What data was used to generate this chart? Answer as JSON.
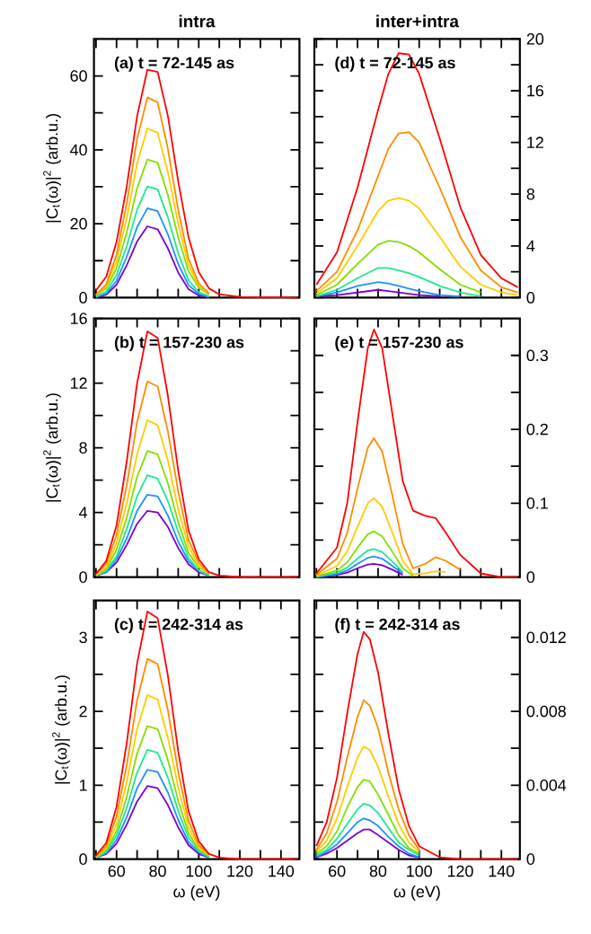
{
  "chart_data": [
    {
      "type": "line",
      "title": "intra",
      "ylabel": "|C$_{t}$(ω)|$^{2}$ (arb.u.)",
      "annotations": [
        "(a) t = 72-145 as"
      ],
      "tick_labels": "y",
      "x": [
        50,
        55,
        60,
        65,
        70,
        75,
        80,
        85,
        90,
        95,
        100,
        105,
        110,
        120,
        148
      ],
      "series": [
        {
          "color": "#7a00d0",
          "values": [
            0,
            0.8,
            3.5,
            8.8,
            15.2,
            19.3,
            18.5,
            13.3,
            6.8,
            2.3,
            0.6,
            0.1,
            null,
            null,
            null
          ]
        },
        {
          "color": "#2090ff",
          "values": [
            0.2,
            1.1,
            4.6,
            11.1,
            19.1,
            24.2,
            23.4,
            17.1,
            9.1,
            3.4,
            1.0,
            0.2,
            null,
            null,
            null
          ]
        },
        {
          "color": "#20e890",
          "values": [
            0.3,
            1.6,
            6.1,
            14.0,
            23.8,
            30.1,
            29.3,
            21.7,
            12.0,
            4.7,
            1.5,
            0.4,
            null,
            null,
            null
          ]
        },
        {
          "color": "#80e000",
          "values": [
            0.6,
            2.5,
            8.0,
            17.7,
            29.6,
            37.4,
            36.5,
            27.7,
            16.3,
            7.2,
            2.7,
            0.8,
            null,
            null,
            null
          ]
        },
        {
          "color": "#ffcc00",
          "values": [
            0.7,
            3.0,
            9.8,
            21.6,
            36.3,
            45.8,
            44.6,
            33.9,
            20.0,
            8.8,
            3.3,
            0.9,
            null,
            null,
            null
          ]
        },
        {
          "color": "#ff8c00",
          "values": [
            0.8,
            3.6,
            11.6,
            25.6,
            42.9,
            54.2,
            52.8,
            40.2,
            23.7,
            10.5,
            3.9,
            1.1,
            null,
            null,
            null
          ]
        },
        {
          "color": "#ff0000",
          "values": [
            1.9,
            5.7,
            15.1,
            30.2,
            49.1,
            61.7,
            61.1,
            49.1,
            31.5,
            16.4,
            6.9,
            2.5,
            0.9,
            0.2,
            0
          ]
        }
      ],
      "xlim": [
        49,
        149
      ],
      "xticks": [
        {
          "value": 50,
          "label": null
        },
        60,
        {
          "value": 70,
          "label": null
        },
        80,
        {
          "value": 90,
          "label": null
        },
        100,
        {
          "value": 110,
          "label": null
        },
        120,
        {
          "value": 130,
          "label": null
        },
        140
      ],
      "ylim": [
        0,
        70
      ],
      "yticks": [
        0,
        {
          "value": 10,
          "label": null
        },
        20,
        {
          "value": 30,
          "label": null
        },
        40,
        {
          "value": 50,
          "label": null
        },
        60
      ]
    },
    {
      "type": "line",
      "title": "inter+intra",
      "annotations": [
        "(d) t = 72-145 as"
      ],
      "tick_labels": "y",
      "x": [
        50,
        60,
        70,
        80,
        85,
        90,
        95,
        100,
        110,
        120,
        130,
        140,
        148
      ],
      "series": [
        {
          "color": "#7a00d0",
          "values": [
            0.1,
            0.2,
            0.4,
            0.6,
            0.5,
            0.4,
            0.3,
            0.2,
            0.1,
            null,
            null,
            null,
            null
          ]
        },
        {
          "color": "#2090ff",
          "values": [
            0.1,
            0.4,
            0.9,
            1.2,
            1.1,
            0.9,
            0.7,
            0.5,
            0.2,
            0.1,
            null,
            null,
            null
          ]
        },
        {
          "color": "#20e890",
          "values": [
            0.1,
            0.6,
            1.5,
            2.3,
            2.3,
            2.1,
            1.9,
            1.6,
            0.9,
            0.4,
            0.1,
            null,
            null
          ]
        },
        {
          "color": "#80e000",
          "values": [
            0.2,
            1.0,
            2.6,
            4.1,
            4.4,
            4.3,
            4.0,
            3.5,
            2.2,
            1.0,
            0.4,
            null,
            null
          ]
        },
        {
          "color": "#ffcc00",
          "values": [
            0.3,
            1.5,
            4.0,
            6.7,
            7.5,
            7.7,
            7.5,
            6.9,
            4.7,
            2.4,
            1.0,
            0.4,
            0.2
          ]
        },
        {
          "color": "#ff8c00",
          "values": [
            0.5,
            2.0,
            5.2,
            9.4,
            11.5,
            12.7,
            12.8,
            12.0,
            8.5,
            4.7,
            2.1,
            0.8,
            0.4
          ]
        },
        {
          "color": "#ff0000",
          "values": [
            1.0,
            3.5,
            8.5,
            14.5,
            17.3,
            18.9,
            18.8,
            17.3,
            12.3,
            7.0,
            3.3,
            1.5,
            0.8
          ]
        }
      ],
      "xlim": [
        49,
        149
      ],
      "xticks": [
        {
          "value": 50,
          "label": null
        },
        60,
        {
          "value": 70,
          "label": null
        },
        80,
        {
          "value": 90,
          "label": null
        },
        100,
        {
          "value": 110,
          "label": null
        },
        120,
        {
          "value": 130,
          "label": null
        },
        140
      ],
      "ylim": [
        0,
        20
      ],
      "yticks": [
        0,
        {
          "value": 2,
          "label": null
        },
        4,
        {
          "value": 6,
          "label": null
        },
        8,
        {
          "value": 10,
          "label": null
        },
        12,
        {
          "value": 14,
          "label": null
        },
        16,
        {
          "value": 18,
          "label": null
        },
        20
      ]
    },
    {
      "type": "line",
      "ylabel": "|C$_{t}$(ω)|$^{2}$ (arb.u.)",
      "annotations": [
        "(b) t = 157-230 as"
      ],
      "tick_labels": "y",
      "x": [
        50,
        55,
        60,
        65,
        70,
        75,
        80,
        85,
        90,
        95,
        100,
        105,
        110,
        120,
        148
      ],
      "series": [
        {
          "color": "#7a00d0",
          "values": [
            0.1,
            0.3,
            0.9,
            2.0,
            3.3,
            4.1,
            4.0,
            3.1,
            1.8,
            0.8,
            0.3,
            0.1,
            null,
            null,
            null
          ]
        },
        {
          "color": "#2090ff",
          "values": [
            0.1,
            0.3,
            1.1,
            2.4,
            4.1,
            5.1,
            5.0,
            3.8,
            2.2,
            1.0,
            0.4,
            0.1,
            null,
            null,
            null
          ]
        },
        {
          "color": "#20e890",
          "values": [
            0.1,
            0.4,
            1.3,
            3.0,
            5.0,
            6.3,
            6.1,
            4.7,
            2.8,
            1.2,
            0.4,
            0.1,
            null,
            null,
            null
          ]
        },
        {
          "color": "#80e000",
          "values": [
            0.1,
            0.5,
            1.7,
            3.7,
            6.2,
            7.8,
            7.6,
            5.8,
            3.4,
            1.5,
            0.6,
            0.2,
            null,
            null,
            null
          ]
        },
        {
          "color": "#ffcc00",
          "values": [
            0.1,
            0.6,
            2.1,
            4.6,
            7.6,
            9.7,
            9.4,
            7.2,
            4.2,
            1.9,
            0.7,
            0.2,
            null,
            null,
            null
          ]
        },
        {
          "color": "#ff8c00",
          "values": [
            0.2,
            0.8,
            2.6,
            5.7,
            9.6,
            12.1,
            11.8,
            9.0,
            5.3,
            2.3,
            0.9,
            0.2,
            null,
            null,
            null
          ]
        },
        {
          "color": "#ff0000",
          "values": [
            0.2,
            1.0,
            3.2,
            7.2,
            12.0,
            15.2,
            14.8,
            11.2,
            6.6,
            2.9,
            1.1,
            0.3,
            0.1,
            0,
            0
          ]
        }
      ],
      "xlim": [
        49,
        149
      ],
      "xticks": [
        {
          "value": 50,
          "label": null
        },
        60,
        {
          "value": 70,
          "label": null
        },
        80,
        {
          "value": 90,
          "label": null
        },
        100,
        {
          "value": 110,
          "label": null
        },
        120,
        {
          "value": 130,
          "label": null
        },
        140
      ],
      "ylim": [
        0,
        16
      ],
      "yticks": [
        0,
        {
          "value": 2,
          "label": null
        },
        4,
        {
          "value": 6,
          "label": null
        },
        8,
        {
          "value": 10,
          "label": null
        },
        12,
        {
          "value": 14,
          "label": null
        },
        16
      ]
    },
    {
      "type": "line",
      "annotations": [
        "(e) t = 157-230 as"
      ],
      "tick_labels": "y",
      "x": [
        50,
        60,
        65,
        70,
        75,
        78,
        82,
        87,
        92,
        97,
        103,
        108,
        113,
        120,
        130,
        140,
        148
      ],
      "series": [
        {
          "color": "#7a00d0",
          "values": [
            0,
            0.003,
            0.006,
            0.012,
            0.017,
            0.018,
            0.016,
            0.01,
            0.003,
            null,
            null,
            null,
            null,
            null,
            null,
            null,
            null
          ]
        },
        {
          "color": "#2090ff",
          "values": [
            0,
            0.004,
            0.009,
            0.018,
            0.026,
            0.028,
            0.025,
            0.015,
            0.005,
            null,
            null,
            null,
            null,
            null,
            null,
            null,
            null
          ]
        },
        {
          "color": "#20e890",
          "values": [
            0.001,
            0.006,
            0.013,
            0.025,
            0.036,
            0.038,
            0.034,
            0.021,
            0.007,
            null,
            null,
            null,
            null,
            null,
            null,
            null,
            null
          ]
        },
        {
          "color": "#80e000",
          "values": [
            0.001,
            0.009,
            0.02,
            0.04,
            0.058,
            0.062,
            0.055,
            0.034,
            0.012,
            0.002,
            null,
            null,
            null,
            null,
            null,
            null,
            null
          ]
        },
        {
          "color": "#ffcc00",
          "values": [
            0.002,
            0.015,
            0.035,
            0.068,
            0.1,
            0.107,
            0.095,
            0.06,
            0.022,
            0.004,
            0.005,
            0.008,
            0.007,
            null,
            null,
            null,
            null
          ]
        },
        {
          "color": "#ff8c00",
          "values": [
            0.003,
            0.025,
            0.06,
            0.12,
            0.175,
            0.188,
            0.17,
            0.11,
            0.045,
            0.012,
            0.018,
            0.027,
            0.022,
            0.01,
            null,
            null,
            null
          ]
        },
        {
          "color": "#ff0000",
          "values": [
            0.005,
            0.04,
            0.1,
            0.21,
            0.31,
            0.335,
            0.31,
            0.22,
            0.13,
            0.09,
            0.083,
            0.08,
            0.06,
            0.03,
            0.005,
            0,
            0
          ]
        }
      ],
      "xlim": [
        49,
        149
      ],
      "xticks": [
        {
          "value": 50,
          "label": null
        },
        60,
        {
          "value": 70,
          "label": null
        },
        80,
        {
          "value": 90,
          "label": null
        },
        100,
        {
          "value": 110,
          "label": null
        },
        120,
        {
          "value": 130,
          "label": null
        },
        140
      ],
      "ylim": [
        0,
        0.35
      ],
      "yticks": [
        0,
        {
          "value": 0.05,
          "label": null
        },
        0.1,
        {
          "value": 0.15,
          "label": null
        },
        0.2,
        {
          "value": 0.25,
          "label": null
        },
        0.3
      ]
    },
    {
      "type": "line",
      "xlabel": "ω (eV)",
      "ylabel": "|C$_{t}$(ω)|$^{2}$ (arb.u.)",
      "annotations": [
        "(c) t = 242-314 as"
      ],
      "x": [
        50,
        55,
        60,
        65,
        70,
        75,
        80,
        85,
        90,
        95,
        100,
        105,
        110,
        120,
        148
      ],
      "series": [
        {
          "color": "#7a00d0",
          "values": [
            0.02,
            0.07,
            0.21,
            0.47,
            0.78,
            0.99,
            0.96,
            0.73,
            0.43,
            0.19,
            0.07,
            0.02,
            null,
            null,
            null
          ]
        },
        {
          "color": "#2090ff",
          "values": [
            0.02,
            0.08,
            0.26,
            0.57,
            0.96,
            1.21,
            1.18,
            0.9,
            0.53,
            0.23,
            0.09,
            0.02,
            null,
            null,
            null
          ]
        },
        {
          "color": "#20e890",
          "values": [
            0.02,
            0.1,
            0.32,
            0.7,
            1.17,
            1.48,
            1.44,
            1.1,
            0.65,
            0.29,
            0.11,
            0.03,
            null,
            null,
            null
          ]
        },
        {
          "color": "#80e000",
          "values": [
            0.03,
            0.12,
            0.38,
            0.85,
            1.43,
            1.8,
            1.76,
            1.34,
            0.79,
            0.35,
            0.13,
            0.04,
            null,
            null,
            null
          ]
        },
        {
          "color": "#ffcc00",
          "values": [
            0.03,
            0.15,
            0.47,
            1.05,
            1.76,
            2.22,
            2.16,
            1.64,
            0.97,
            0.43,
            0.16,
            0.05,
            null,
            null,
            null
          ]
        },
        {
          "color": "#ff8c00",
          "values": [
            0.04,
            0.18,
            0.58,
            1.28,
            2.15,
            2.71,
            2.64,
            2.01,
            1.18,
            0.52,
            0.19,
            0.06,
            null,
            null,
            null
          ]
        },
        {
          "color": "#ff0000",
          "values": [
            0.05,
            0.22,
            0.71,
            1.58,
            2.65,
            3.35,
            3.26,
            2.48,
            1.46,
            0.65,
            0.24,
            0.07,
            0.02,
            0,
            0
          ]
        }
      ],
      "xlim": [
        49,
        149
      ],
      "xticks": [
        {
          "value": 50,
          "label": null
        },
        60,
        {
          "value": 70,
          "label": null
        },
        80,
        {
          "value": 90,
          "label": null
        },
        100,
        {
          "value": 110,
          "label": null
        },
        120,
        {
          "value": 130,
          "label": null
        },
        140
      ],
      "ylim": [
        0,
        3.5
      ],
      "yticks": [
        0,
        {
          "value": 0.5,
          "label": null
        },
        1,
        {
          "value": 1.5,
          "label": null
        },
        2,
        {
          "value": 2.5,
          "label": null
        },
        3
      ]
    },
    {
      "type": "line",
      "xlabel": "ω (eV)",
      "annotations": [
        "(f) t = 242-314 as"
      ],
      "x": [
        50,
        55,
        60,
        65,
        70,
        73,
        76,
        80,
        85,
        90,
        95,
        100,
        110,
        120,
        148
      ],
      "series": [
        {
          "color": "#7a00d0",
          "values": [
            0.0001,
            0.0003,
            0.0006,
            0.001,
            0.0014,
            0.0016,
            0.0016,
            0.0013,
            0.0009,
            0.0005,
            0.0002,
            0.0001,
            null,
            null,
            null
          ]
        },
        {
          "color": "#2090ff",
          "values": [
            0.0001,
            0.0004,
            0.0008,
            0.0014,
            0.002,
            0.0022,
            0.0021,
            0.0018,
            0.0012,
            0.0007,
            0.0003,
            0.0001,
            null,
            null,
            null
          ]
        },
        {
          "color": "#20e890",
          "values": [
            0.0002,
            0.0005,
            0.0011,
            0.0019,
            0.0027,
            0.003,
            0.0029,
            0.0025,
            0.0017,
            0.0009,
            0.0005,
            0.0002,
            null,
            null,
            null
          ]
        },
        {
          "color": "#80e000",
          "values": [
            0.0003,
            0.0007,
            0.0015,
            0.0028,
            0.0039,
            0.0043,
            0.0042,
            0.0035,
            0.0024,
            0.0013,
            0.0006,
            0.0003,
            null,
            null,
            null
          ]
        },
        {
          "color": "#ffcc00",
          "values": [
            0.0004,
            0.001,
            0.0022,
            0.0039,
            0.0055,
            0.0061,
            0.0059,
            0.005,
            0.0034,
            0.0019,
            0.0009,
            0.0004,
            null,
            null,
            null
          ]
        },
        {
          "color": "#ff8c00",
          "values": [
            0.0005,
            0.0014,
            0.0031,
            0.0055,
            0.0077,
            0.0086,
            0.0083,
            0.0071,
            0.0047,
            0.0027,
            0.0013,
            0.0005,
            null,
            null,
            null
          ]
        },
        {
          "color": "#ff0000",
          "values": [
            0.0007,
            0.002,
            0.0044,
            0.0079,
            0.0111,
            0.0123,
            0.0119,
            0.0101,
            0.0068,
            0.0038,
            0.0018,
            0.0007,
            0.0001,
            0,
            0
          ]
        }
      ],
      "xlim": [
        49,
        149
      ],
      "xticks": [
        {
          "value": 50,
          "label": null
        },
        60,
        {
          "value": 70,
          "label": null
        },
        80,
        {
          "value": 90,
          "label": null
        },
        100,
        {
          "value": 110,
          "label": null
        },
        120,
        {
          "value": 130,
          "label": null
        },
        140
      ],
      "ylim": [
        0,
        0.014
      ],
      "yticks": [
        0,
        {
          "value": 0.002,
          "label": null
        },
        0.004,
        {
          "value": 0.006,
          "label": null
        },
        0.008,
        {
          "value": 0.01,
          "label": null
        },
        0.012
      ]
    }
  ]
}
